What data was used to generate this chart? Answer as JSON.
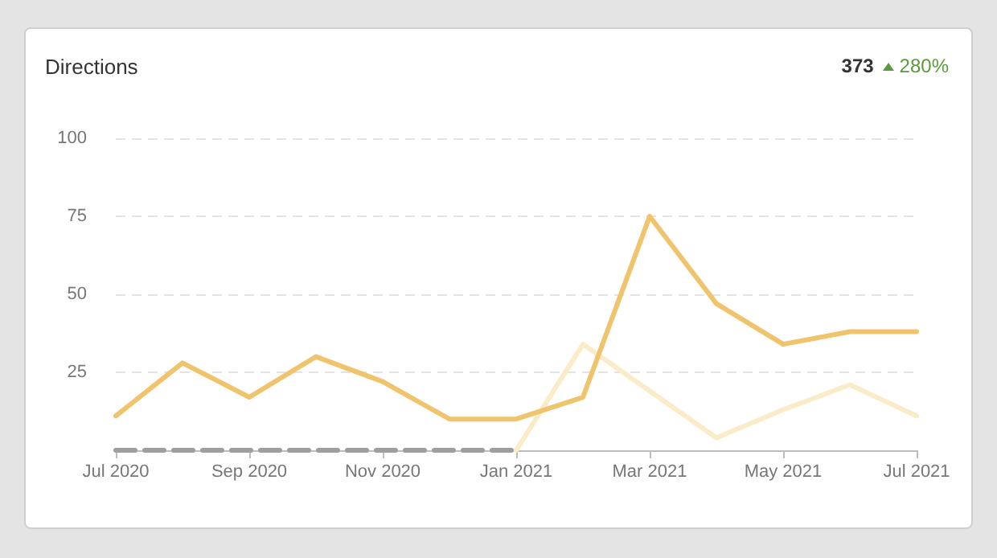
{
  "chart_data": {
    "type": "line",
    "title": "Directions",
    "annotations": [
      "373",
      "280%"
    ],
    "categories": [
      "Jul 2020",
      null,
      "Sep 2020",
      null,
      "Nov 2020",
      null,
      "Jan 2021",
      null,
      "Mar 2021",
      null,
      "May 2021",
      null,
      "Jul 2021"
    ],
    "series": [
      {
        "color": "#9e9e9e",
        "line_style": "dashed",
        "values": [
          0,
          0,
          0,
          0,
          0,
          0,
          0,
          null,
          null,
          null,
          null,
          null,
          null
        ]
      },
      {
        "color": "#fbecc9",
        "values": [
          null,
          null,
          null,
          null,
          null,
          null,
          0,
          34,
          19,
          4,
          13,
          21,
          11
        ]
      },
      {
        "color": "#f0c36d",
        "values": [
          11,
          28,
          17,
          30,
          22,
          10,
          10,
          17,
          75,
          47,
          34,
          38,
          38
        ]
      }
    ],
    "ylim": [
      0,
      100
    ],
    "yticks": [
      {
        "value": 0,
        "label": null
      },
      25,
      50,
      75,
      100
    ],
    "grid": "y",
    "marker": "none"
  }
}
